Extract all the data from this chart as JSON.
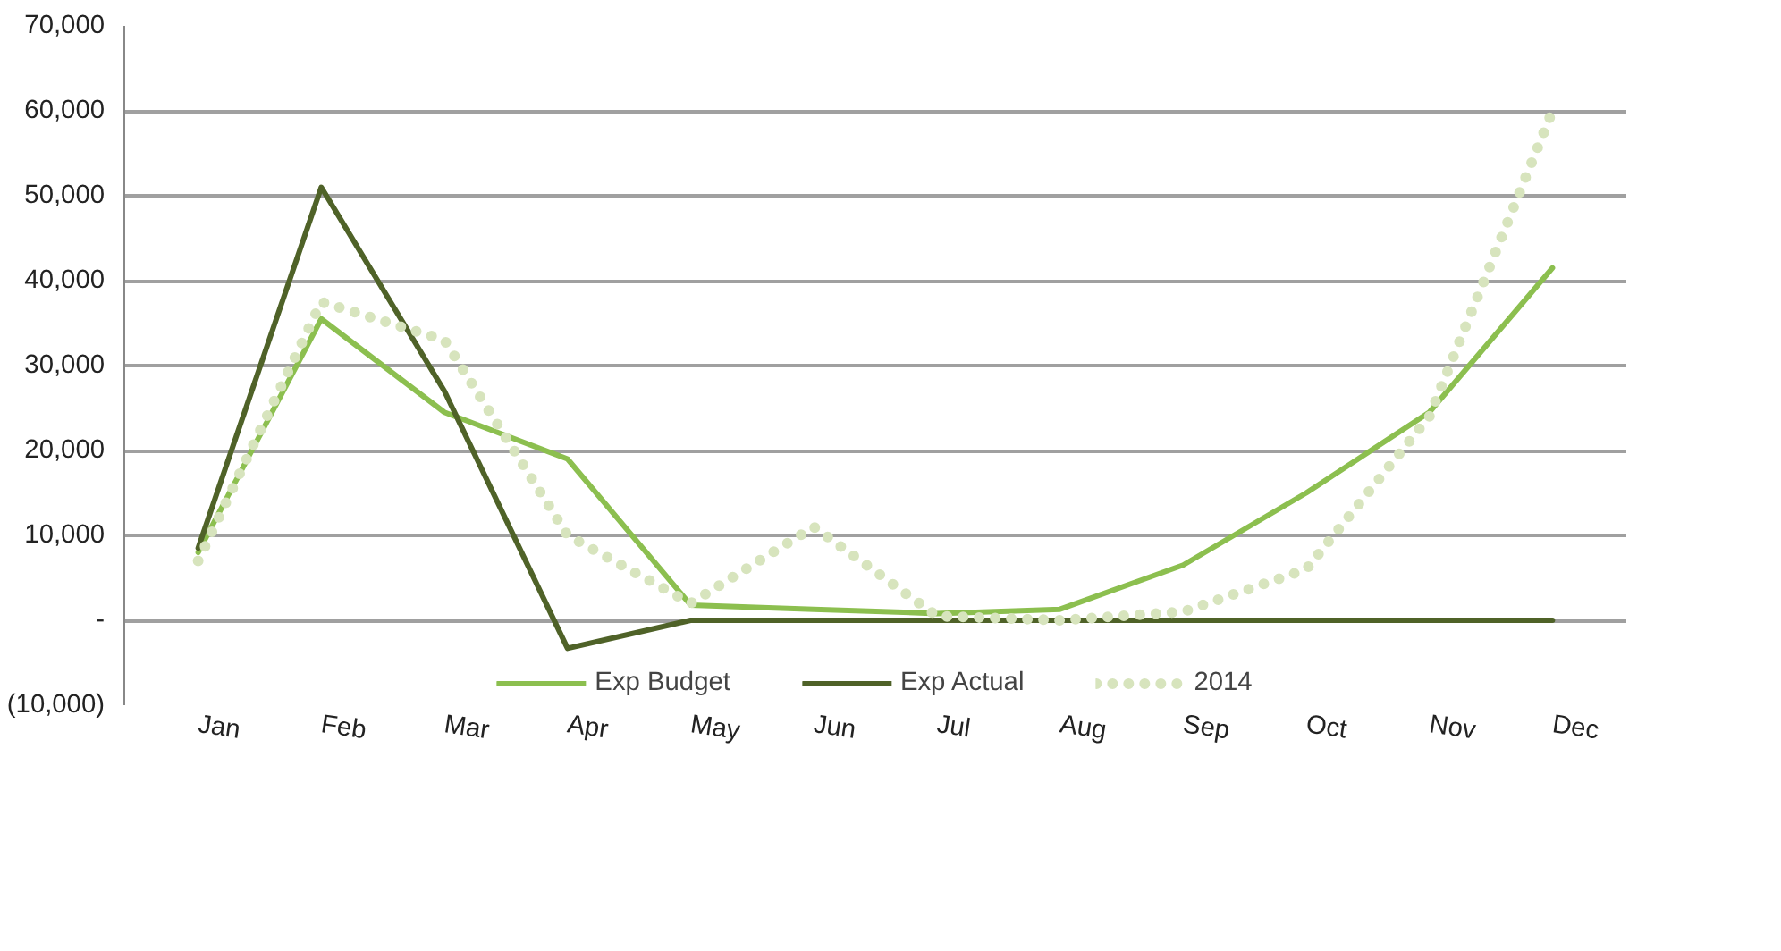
{
  "chart_data": {
    "type": "line",
    "categories": [
      "Jan",
      "Feb",
      "Mar",
      "Apr",
      "May",
      "Jun",
      "Jul",
      "Aug",
      "Sep",
      "Oct",
      "Nov",
      "Dec"
    ],
    "series": [
      {
        "name": "Exp Budget",
        "color": "#8cbf4f",
        "values": [
          8000,
          35500,
          24500,
          19000,
          1800,
          1300,
          800,
          1300,
          6500,
          15000,
          24500,
          41500
        ]
      },
      {
        "name": "Exp Actual",
        "color": "#4f6228",
        "values": [
          8500,
          51000,
          27000,
          -3300,
          0,
          0,
          0,
          0,
          0,
          0,
          0,
          0
        ]
      },
      {
        "name": "2014",
        "color": "#d7e4bd",
        "line_style": "dotted",
        "values": [
          7000,
          37500,
          33000,
          10000,
          2000,
          11000,
          500,
          0,
          1000,
          6000,
          24000,
          60000
        ]
      }
    ],
    "ylim": [
      -10000,
      70000
    ],
    "yticks": [
      {
        "value": -10000,
        "label": "(10,000)"
      },
      {
        "value": 0,
        "label": "-"
      },
      {
        "value": 10000,
        "label": "10,000"
      },
      {
        "value": 20000,
        "label": "20,000"
      },
      {
        "value": 30000,
        "label": "30,000"
      },
      {
        "value": 40000,
        "label": "40,000"
      },
      {
        "value": 50000,
        "label": "50,000"
      },
      {
        "value": 60000,
        "label": "60,000"
      },
      {
        "value": 70000,
        "label": "70,000"
      }
    ],
    "grid": "y",
    "legend": "bottom",
    "line_style": "solid",
    "marker": "none"
  }
}
